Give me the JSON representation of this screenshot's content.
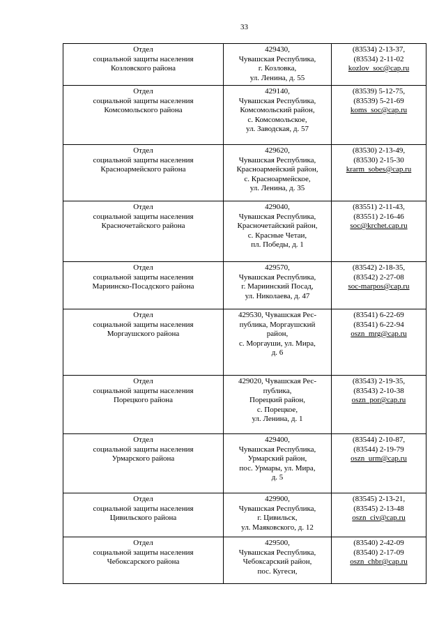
{
  "page": {
    "number": "33"
  },
  "table": {
    "rows": [
      {
        "name_lines": [
          "Отдел",
          "социальной защиты населения",
          "Козловского района"
        ],
        "address_lines": [
          "429430,",
          "Чувашская Республика,",
          "г. Козловка,",
          "ул. Ленина, д. 55"
        ],
        "phone_lines": [
          "(83534) 2-13-37,",
          "(83534) 2-11-02"
        ],
        "email": "kozlov_soc@cap.ru"
      },
      {
        "name_lines": [
          "Отдел",
          "социальной защиты населения",
          "Комсомольского района"
        ],
        "address_lines": [
          "429140,",
          "Чувашская Республика,",
          "Комсомольский район,",
          "с. Комсомольское,",
          "ул. Заводская, д. 57"
        ],
        "phone_lines": [
          "(83539) 5-12-75,",
          "(83539) 5-21-69"
        ],
        "email": "koms_soc@cap.ru"
      },
      {
        "name_lines": [
          "Отдел",
          "социальной защиты населения",
          "Красноармейского района"
        ],
        "address_lines": [
          "429620,",
          "Чувашская Республика,",
          "Красноармейский район,",
          "с. Красноармейское,",
          "ул. Ленина, д. 35"
        ],
        "phone_lines": [
          "(83530) 2-13-49,",
          "(83530) 2-15-30"
        ],
        "email": "krarm_sobes@cap.ru"
      },
      {
        "name_lines": [
          "Отдел",
          "социальной защиты населения",
          "Красночетайского района"
        ],
        "address_lines": [
          "429040,",
          "Чувашская Республика,",
          "Красночетайский район,",
          "с. Красные Четаи,",
          "пл. Победы, д. 1"
        ],
        "phone_lines": [
          "(83551) 2-11-43,",
          "(83551) 2-16-46"
        ],
        "email": "soc@krchet.cap.ru"
      },
      {
        "name_lines": [
          "Отдел",
          "социальной защиты населения",
          "Мариинско-Посадского района"
        ],
        "address_lines": [
          "429570,",
          "Чувашская Республика,",
          "г. Мариинский Посад,",
          "ул. Николаева, д. 47"
        ],
        "phone_lines": [
          "(83542) 2-18-35,",
          "(83542) 2-27-08"
        ],
        "email": "soc-marpos@cap.ru"
      },
      {
        "name_lines": [
          "Отдел",
          "социальной защиты населения",
          "Моргаушского района"
        ],
        "address_lines": [
          "429530, Чувашская Рес-",
          "публика, Моргаушский",
          "район,",
          "с. Моргауши, ул. Мира,",
          "д. 6"
        ],
        "phone_lines": [
          "(83541) 6-22-69",
          "(83541) 6-22-94"
        ],
        "email": "oszn_mrg@cap.ru"
      },
      {
        "name_lines": [
          "Отдел",
          "социальной защиты населения",
          "Порецкого района"
        ],
        "address_lines": [
          "429020, Чувашская Рес-",
          "публика,",
          "Порецкий район,",
          "с. Порецкое,",
          "ул. Ленина, д. 1"
        ],
        "phone_lines": [
          "(83543) 2-19-35,",
          "(83543) 2-10-38"
        ],
        "email": "oszn_por@cap.ru"
      },
      {
        "name_lines": [
          "Отдел",
          "социальной защиты населения",
          "Урмарского района"
        ],
        "address_lines": [
          "429400,",
          "Чувашская Республика,",
          "Урмарский район,",
          "пос. Урмары, ул. Мира,",
          "д. 5"
        ],
        "phone_lines": [
          "(83544) 2-10-87,",
          "(83544) 2-19-79"
        ],
        "email": "oszn_urm@cap.ru"
      },
      {
        "name_lines": [
          "Отдел",
          "социальной защиты населения",
          "Цивильского района"
        ],
        "address_lines": [
          "429900,",
          "Чувашская Республика,",
          "г. Цивильск,",
          "ул. Маяковского, д. 12"
        ],
        "phone_lines": [
          "(83545) 2-13-21,",
          "(83545) 2-13-48"
        ],
        "email": "oszn_civ@cap.ru"
      },
      {
        "name_lines": [
          "Отдел",
          "социальной защиты населения",
          "Чебоксарского района"
        ],
        "address_lines": [
          "429500,",
          "Чувашская Республика,",
          "Чебоксарский район,",
          "пос. Кугеси,"
        ],
        "phone_lines": [
          "(83540) 2-42-09",
          "(83540) 2-17-09"
        ],
        "email": "oszn_chbr@cap.ru"
      }
    ]
  },
  "colors": {
    "text": "#000000",
    "background": "#ffffff",
    "border": "#000000"
  }
}
